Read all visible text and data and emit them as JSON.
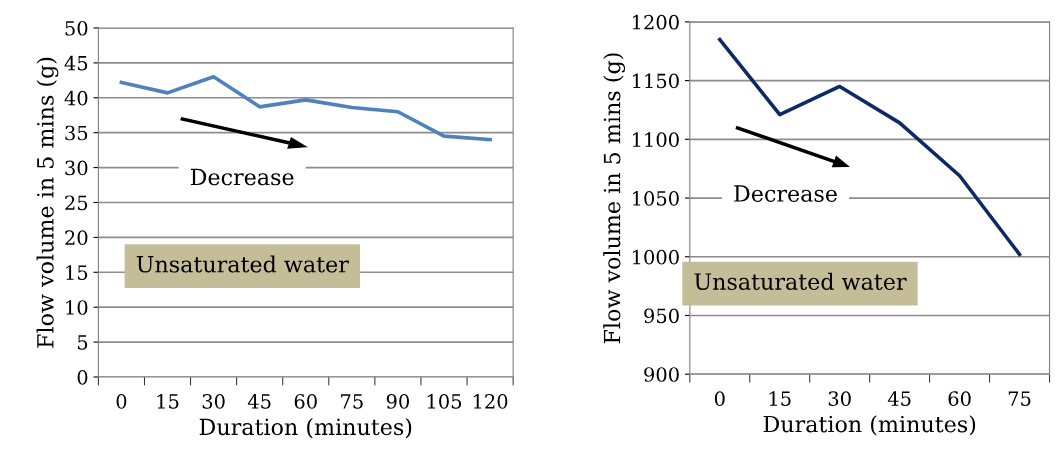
{
  "chart_data": [
    {
      "type": "line",
      "xlabel": "Duration (minutes)",
      "ylabel": "Flow volume in 5 mins (g)",
      "categories": [
        "0",
        "15",
        "30",
        "45",
        "60",
        "75",
        "90",
        "105",
        "120"
      ],
      "series": [
        {
          "color": "#4f81bd",
          "values": [
            42.2,
            40.7,
            43.0,
            38.7,
            39.7,
            38.6,
            38.0,
            34.5,
            34.0
          ]
        }
      ],
      "ylim": [
        0,
        50
      ],
      "yticks": [
        0,
        5,
        10,
        15,
        20,
        25,
        30,
        35,
        40,
        45,
        50
      ],
      "grid": "y",
      "marker": "none",
      "line_style": "solid",
      "annotations": [
        "Decrease",
        "Unsaturated water"
      ]
    },
    {
      "type": "line",
      "xlabel": "Duration (minutes)",
      "ylabel": "Flow volume in 5 mins (g)",
      "categories": [
        "0",
        "15",
        "30",
        "45",
        "60",
        "75"
      ],
      "series": [
        {
          "color": "#0e2a66",
          "values": [
            1185,
            1121,
            1145,
            1114,
            1069,
            1002
          ]
        }
      ],
      "ylim": [
        900,
        1200
      ],
      "yticks": [
        900,
        950,
        1000,
        1050,
        1100,
        1150,
        1200
      ],
      "grid": "y",
      "marker": "none",
      "line_style": "solid",
      "annotations": [
        "Decrease",
        "Unsaturated water"
      ]
    }
  ]
}
